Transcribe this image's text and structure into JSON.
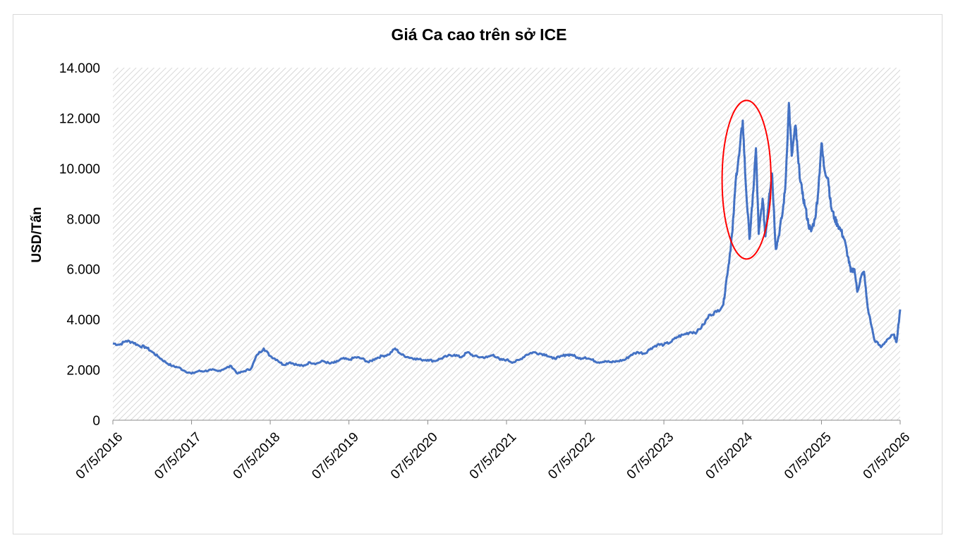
{
  "chart_data": {
    "type": "line",
    "title": "Giá Ca cao trên sở ICE",
    "xlabel": "",
    "ylabel": "USD/Tấn",
    "ylim": [
      0,
      14000
    ],
    "y_ticks": [
      "0",
      "2.000",
      "4.000",
      "6.000",
      "8.000",
      "10.000",
      "12.000",
      "14.000"
    ],
    "y_tick_values": [
      0,
      2000,
      4000,
      6000,
      8000,
      10000,
      12000,
      14000
    ],
    "x_ticks": [
      "07/5/2016",
      "07/5/2017",
      "07/5/2018",
      "07/5/2019",
      "07/5/2020",
      "07/5/2021",
      "07/5/2022",
      "07/5/2023",
      "07/5/2024",
      "07/5/2025",
      "07/5/2026"
    ],
    "x_tick_dates": [
      "2016-05-07",
      "2017-05-07",
      "2018-05-07",
      "2019-05-07",
      "2020-05-07",
      "2021-05-07",
      "2022-05-07",
      "2023-05-07",
      "2024-05-07",
      "2025-05-07",
      "2026-05-07"
    ],
    "xlim": [
      "2016-05-07",
      "2026-05-07"
    ],
    "grid": false,
    "legend": "none",
    "line_color": "#4472C4",
    "highlight_color": "#FF0000",
    "highlight_date_range": [
      "2024-02-01",
      "2024-09-15"
    ],
    "highlight_value_range": [
      6400,
      12700
    ],
    "series": [
      {
        "x": [
          "2016-05-07",
          "2016-06-07",
          "2016-07-07",
          "2016-08-07",
          "2016-09-07",
          "2016-10-07",
          "2016-11-07",
          "2016-12-07",
          "2017-01-07",
          "2017-02-07",
          "2017-03-07",
          "2017-04-07",
          "2017-05-07",
          "2017-06-07",
          "2017-07-07",
          "2017-08-07",
          "2017-09-07",
          "2017-10-07",
          "2017-11-07",
          "2017-12-07",
          "2018-01-07",
          "2018-02-07",
          "2018-03-07",
          "2018-04-07",
          "2018-05-07",
          "2018-06-07",
          "2018-07-07",
          "2018-08-07",
          "2018-09-07",
          "2018-10-07",
          "2018-11-07",
          "2018-12-07",
          "2019-01-07",
          "2019-02-07",
          "2019-03-07",
          "2019-04-07",
          "2019-05-07",
          "2019-06-07",
          "2019-07-07",
          "2019-08-07",
          "2019-09-07",
          "2019-10-07",
          "2019-11-07",
          "2019-12-07",
          "2020-01-07",
          "2020-02-07",
          "2020-03-07",
          "2020-04-07",
          "2020-05-07",
          "2020-06-07",
          "2020-07-07",
          "2020-08-07",
          "2020-09-07",
          "2020-10-07",
          "2020-11-07",
          "2020-12-07",
          "2021-01-07",
          "2021-02-07",
          "2021-03-07",
          "2021-04-07",
          "2021-05-07",
          "2021-06-07",
          "2021-07-07",
          "2021-08-07",
          "2021-09-07",
          "2021-10-07",
          "2021-11-07",
          "2021-12-07",
          "2022-01-07",
          "2022-02-07",
          "2022-03-07",
          "2022-04-07",
          "2022-05-07",
          "2022-06-07",
          "2022-07-07",
          "2022-08-07",
          "2022-09-07",
          "2022-10-07",
          "2022-11-07",
          "2022-12-07",
          "2023-01-07",
          "2023-02-07",
          "2023-03-07",
          "2023-04-07",
          "2023-05-07",
          "2023-06-07",
          "2023-07-07",
          "2023-08-07",
          "2023-09-07",
          "2023-10-07",
          "2023-11-07",
          "2023-12-07",
          "2024-01-07",
          "2024-02-07",
          "2024-02-20",
          "2024-03-07",
          "2024-03-20",
          "2024-04-07",
          "2024-04-20",
          "2024-05-07",
          "2024-05-20",
          "2024-06-07",
          "2024-06-20",
          "2024-07-07",
          "2024-07-20",
          "2024-08-07",
          "2024-08-20",
          "2024-09-07",
          "2024-09-20",
          "2024-10-07",
          "2024-10-20",
          "2024-11-07",
          "2024-11-20",
          "2024-12-07",
          "2024-12-20",
          "2025-01-07",
          "2025-01-20",
          "2025-02-07",
          "2025-02-20",
          "2025-03-07",
          "2025-03-20",
          "2025-04-07",
          "2025-04-20",
          "2025-05-07",
          "2025-05-20",
          "2025-06-07",
          "2025-06-20",
          "2025-07-07",
          "2025-07-20",
          "2025-08-07",
          "2025-08-20",
          "2025-09-07",
          "2025-09-20",
          "2025-10-07",
          "2025-10-20",
          "2025-11-07",
          "2025-11-20",
          "2025-12-07",
          "2026-01-07",
          "2026-02-07",
          "2026-03-07",
          "2026-04-07",
          "2026-04-20",
          "2026-05-07"
        ],
        "y": [
          3050,
          3000,
          3150,
          3100,
          2950,
          2900,
          2700,
          2500,
          2300,
          2150,
          2100,
          1950,
          1850,
          1950,
          1950,
          2000,
          1950,
          2050,
          2150,
          1850,
          1950,
          2050,
          2600,
          2850,
          2550,
          2400,
          2200,
          2300,
          2200,
          2150,
          2300,
          2250,
          2350,
          2250,
          2300,
          2450,
          2400,
          2500,
          2450,
          2300,
          2450,
          2550,
          2600,
          2850,
          2600,
          2500,
          2450,
          2400,
          2400,
          2350,
          2450,
          2550,
          2600,
          2500,
          2700,
          2550,
          2500,
          2500,
          2600,
          2400,
          2400,
          2300,
          2400,
          2600,
          2700,
          2650,
          2600,
          2450,
          2500,
          2600,
          2600,
          2450,
          2500,
          2400,
          2300,
          2350,
          2300,
          2350,
          2400,
          2600,
          2700,
          2650,
          2850,
          3000,
          3000,
          3100,
          3300,
          3400,
          3500,
          3500,
          3800,
          4200,
          4300,
          4600,
          5500,
          6500,
          7500,
          9800,
          10500,
          11900,
          9500,
          7200,
          8500,
          10800,
          7400,
          8800,
          7300,
          9000,
          9800,
          6800,
          7300,
          8200,
          9200,
          12600,
          10500,
          11700,
          10200,
          9000,
          8500,
          7800,
          7500,
          8000,
          8900,
          11000,
          10000,
          9600,
          8500,
          8000,
          7800,
          7500,
          7200,
          6500,
          5900,
          6000,
          5100,
          5700,
          5900,
          4500,
          3200,
          2900,
          3200,
          3400,
          3100,
          4400
        ]
      }
    ]
  }
}
